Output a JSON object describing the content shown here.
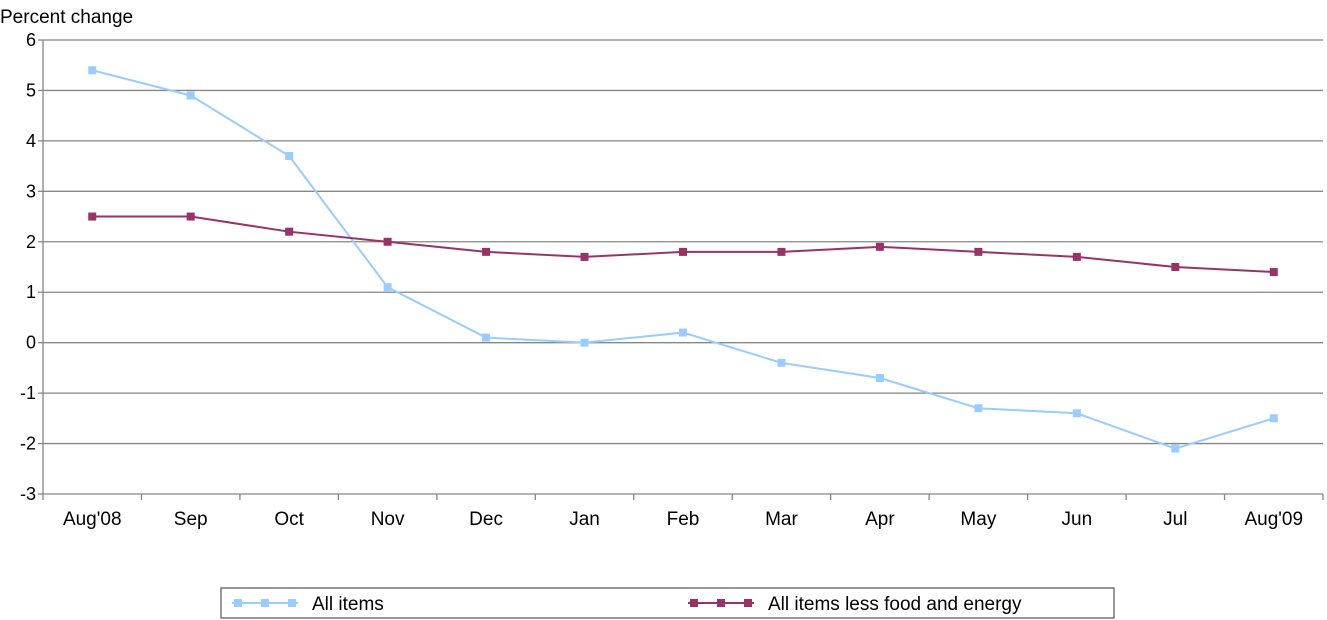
{
  "chart_data": {
    "type": "line",
    "ylabel": "Percent change",
    "ylim": [
      -3,
      6
    ],
    "yticks": [
      "6",
      "5",
      "4",
      "3",
      "2",
      "1",
      "0",
      "-1",
      "-2",
      "-3"
    ],
    "categories": [
      "Aug'08",
      "Sep",
      "Oct",
      "Nov",
      "Dec",
      "Jan",
      "Feb",
      "Mar",
      "Apr",
      "May",
      "Jun",
      "Jul",
      "Aug'09"
    ],
    "grid": true,
    "legend_position": "bottom",
    "series": [
      {
        "name": "All items",
        "color": "#99ccff",
        "marker": "square",
        "values": [
          5.4,
          4.9,
          3.7,
          1.1,
          0.1,
          0.0,
          0.2,
          -0.4,
          -0.7,
          -1.3,
          -1.4,
          -2.1,
          -1.5
        ]
      },
      {
        "name": "All items less food and energy",
        "color": "#993366",
        "marker": "square",
        "values": [
          2.5,
          2.5,
          2.2,
          2.0,
          1.8,
          1.7,
          1.8,
          1.8,
          1.9,
          1.8,
          1.7,
          1.5,
          1.4
        ]
      }
    ]
  }
}
